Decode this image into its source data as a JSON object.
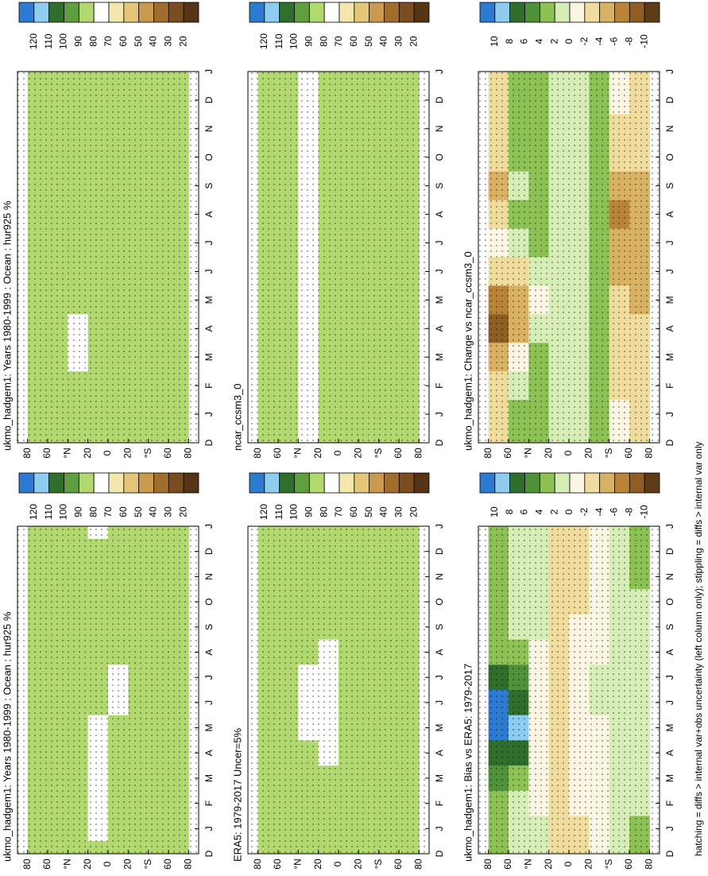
{
  "chart_data": [
    {
      "type": "heatmap",
      "title": "ukmo_hadgem1: Years 1980-1999 : Ocean : hur925 %",
      "categories": [
        "D",
        "J",
        "F",
        "M",
        "A",
        "M",
        "J",
        "J",
        "A",
        "S",
        "O",
        "N",
        "D",
        "J"
      ],
      "y": [
        70,
        50,
        30,
        10,
        -10,
        -30,
        -50,
        -70
      ],
      "ylim": [
        -90,
        90
      ],
      "yticks": [
        80,
        60,
        {
          "value": 40,
          "label": "°N"
        },
        20,
        0,
        {
          "value": -20,
          "label": "20"
        },
        {
          "value": -40,
          "label": "°S"
        },
        {
          "value": -60,
          "label": "60"
        },
        {
          "value": -80,
          "label": "80"
        }
      ],
      "values": [
        [
          84,
          84,
          84,
          83,
          82,
          82,
          83,
          84,
          85,
          85,
          85,
          84,
          84,
          84
        ],
        [
          85,
          85,
          85,
          84,
          83,
          83,
          84,
          85,
          85,
          86,
          86,
          85,
          85,
          85
        ],
        [
          82,
          82,
          82,
          81,
          80,
          80,
          80,
          80,
          82,
          83,
          83,
          82,
          82,
          82
        ],
        [
          80,
          78,
          76,
          75,
          76,
          79,
          82,
          83,
          83,
          82,
          81,
          80,
          80,
          78
        ],
        [
          82,
          82,
          82,
          82,
          81,
          80,
          79,
          79,
          80,
          81,
          82,
          82,
          82,
          82
        ],
        [
          83,
          83,
          82,
          82,
          82,
          81,
          81,
          81,
          81,
          82,
          83,
          83,
          83,
          83
        ],
        [
          86,
          86,
          85,
          85,
          85,
          85,
          85,
          85,
          85,
          85,
          85,
          86,
          86,
          86
        ],
        [
          87,
          87,
          86,
          86,
          86,
          86,
          86,
          86,
          86,
          86,
          86,
          87,
          87,
          87
        ]
      ],
      "levels": [
        120,
        110,
        100,
        90,
        80,
        70,
        60,
        50,
        40,
        30,
        20
      ],
      "colors": [
        "#2d7bd0",
        "#8fcdf0",
        "#2f6f2b",
        "#5f9f3d",
        "#b2d970",
        "#ffffff",
        "#f4e7ad",
        "#e3c679",
        "#c79a4d",
        "#a06d2e",
        "#7a4e20",
        "#553516"
      ]
    },
    {
      "type": "heatmap",
      "title": "ukmo_hadgem1: Years 1980-1999 : Ocean : hur925 %",
      "categories": [
        "D",
        "J",
        "F",
        "M",
        "A",
        "M",
        "J",
        "J",
        "A",
        "S",
        "O",
        "N",
        "D",
        "J"
      ],
      "y": [
        70,
        50,
        30,
        10,
        -10,
        -30,
        -50,
        -70
      ],
      "ylim": [
        -90,
        90
      ],
      "yticks": [
        80,
        60,
        {
          "value": 40,
          "label": "°N"
        },
        20,
        0,
        {
          "value": -20,
          "label": "20"
        },
        {
          "value": -40,
          "label": "°S"
        },
        {
          "value": -60,
          "label": "60"
        },
        {
          "value": -80,
          "label": "80"
        }
      ],
      "values": [
        [
          84,
          84,
          84,
          84,
          83,
          83,
          83,
          84,
          85,
          85,
          85,
          84,
          84,
          84
        ],
        [
          85,
          85,
          85,
          85,
          84,
          84,
          84,
          85,
          85,
          86,
          86,
          85,
          85,
          85
        ],
        [
          82,
          82,
          81,
          79,
          78,
          80,
          81,
          81,
          82,
          83,
          83,
          82,
          82,
          82
        ],
        [
          81,
          81,
          80,
          80,
          81,
          82,
          83,
          83,
          83,
          82,
          82,
          81,
          81,
          81
        ],
        [
          82,
          82,
          82,
          82,
          82,
          82,
          81,
          81,
          81,
          82,
          82,
          82,
          82,
          82
        ],
        [
          83,
          83,
          83,
          82,
          82,
          82,
          82,
          82,
          82,
          82,
          83,
          83,
          83,
          83
        ],
        [
          86,
          86,
          85,
          85,
          85,
          85,
          85,
          85,
          85,
          85,
          85,
          86,
          86,
          86
        ],
        [
          87,
          87,
          86,
          86,
          86,
          86,
          86,
          86,
          86,
          86,
          86,
          87,
          87,
          87
        ]
      ],
      "levels": [
        120,
        110,
        100,
        90,
        80,
        70,
        60,
        50,
        40,
        30,
        20
      ],
      "colors": [
        "#2d7bd0",
        "#8fcdf0",
        "#2f6f2b",
        "#5f9f3d",
        "#b2d970",
        "#ffffff",
        "#f4e7ad",
        "#e3c679",
        "#c79a4d",
        "#a06d2e",
        "#7a4e20",
        "#553516"
      ]
    },
    {
      "type": "heatmap",
      "title": "ERA5: 1979-2017 Uncer=5%",
      "categories": [
        "D",
        "J",
        "F",
        "M",
        "A",
        "M",
        "J",
        "J",
        "A",
        "S",
        "O",
        "N",
        "D",
        "J"
      ],
      "y": [
        70,
        50,
        30,
        10,
        -10,
        -30,
        -50,
        -70
      ],
      "ylim": [
        -90,
        90
      ],
      "yticks": [
        80,
        60,
        {
          "value": 40,
          "label": "°N"
        },
        20,
        0,
        {
          "value": -20,
          "label": "20"
        },
        {
          "value": -40,
          "label": "°S"
        },
        {
          "value": -60,
          "label": "60"
        },
        {
          "value": -80,
          "label": "80"
        }
      ],
      "values": [
        [
          84,
          84,
          84,
          84,
          82,
          80,
          81,
          81,
          82,
          84,
          85,
          85,
          84,
          84
        ],
        [
          85,
          85,
          85,
          85,
          83,
          81,
          81,
          82,
          83,
          85,
          86,
          86,
          85,
          85
        ],
        [
          82,
          82,
          82,
          82,
          80,
          77,
          75,
          76,
          80,
          82,
          83,
          83,
          82,
          82
        ],
        [
          80,
          80,
          80,
          80,
          79,
          76,
          74,
          74,
          77,
          80,
          81,
          81,
          80,
          80
        ],
        [
          81,
          81,
          81,
          81,
          81,
          81,
          81,
          81,
          81,
          81,
          81,
          81,
          81,
          81
        ],
        [
          82,
          82,
          82,
          82,
          82,
          82,
          82,
          82,
          82,
          82,
          82,
          82,
          82,
          82
        ],
        [
          86,
          86,
          86,
          86,
          86,
          86,
          86,
          86,
          86,
          86,
          86,
          86,
          86,
          86
        ],
        [
          87,
          87,
          87,
          87,
          87,
          87,
          87,
          87,
          87,
          87,
          87,
          87,
          87,
          87
        ]
      ],
      "levels": [
        120,
        110,
        100,
        90,
        80,
        70,
        60,
        50,
        40,
        30,
        20
      ],
      "colors": [
        "#2d7bd0",
        "#8fcdf0",
        "#2f6f2b",
        "#5f9f3d",
        "#b2d970",
        "#ffffff",
        "#f4e7ad",
        "#e3c679",
        "#c79a4d",
        "#a06d2e",
        "#7a4e20",
        "#553516"
      ]
    },
    {
      "type": "heatmap",
      "title": "ncar_ccsm3_0",
      "categories": [
        "D",
        "J",
        "F",
        "M",
        "A",
        "M",
        "J",
        "J",
        "A",
        "S",
        "O",
        "N",
        "D",
        "J"
      ],
      "y": [
        70,
        50,
        30,
        10,
        -10,
        -30,
        -50,
        -70
      ],
      "ylim": [
        -90,
        90
      ],
      "yticks": [
        80,
        60,
        {
          "value": 40,
          "label": "°N"
        },
        20,
        0,
        {
          "value": -20,
          "label": "20"
        },
        {
          "value": -40,
          "label": "°S"
        },
        {
          "value": -60,
          "label": "60"
        },
        {
          "value": -80,
          "label": "80"
        }
      ],
      "values": [
        [
          85,
          85,
          85,
          85,
          85,
          85,
          84,
          84,
          84,
          85,
          85,
          85,
          85,
          85
        ],
        [
          86,
          86,
          86,
          86,
          85,
          85,
          85,
          85,
          85,
          86,
          86,
          86,
          86,
          86
        ],
        [
          77,
          77,
          77,
          76,
          76,
          76,
          75,
          75,
          76,
          76,
          77,
          77,
          77,
          77
        ],
        [
          82,
          82,
          82,
          82,
          82,
          82,
          82,
          82,
          82,
          82,
          82,
          82,
          82,
          82
        ],
        [
          83,
          83,
          83,
          83,
          83,
          83,
          83,
          83,
          83,
          83,
          83,
          83,
          83,
          83
        ],
        [
          82,
          82,
          82,
          82,
          82,
          82,
          81,
          81,
          81,
          82,
          82,
          82,
          82,
          82
        ],
        [
          86,
          86,
          86,
          86,
          86,
          86,
          86,
          86,
          86,
          86,
          86,
          86,
          86,
          86
        ],
        [
          87,
          87,
          87,
          87,
          87,
          87,
          87,
          87,
          87,
          87,
          87,
          87,
          87,
          87
        ]
      ],
      "levels": [
        120,
        110,
        100,
        90,
        80,
        70,
        60,
        50,
        40,
        30,
        20
      ],
      "colors": [
        "#2d7bd0",
        "#8fcdf0",
        "#2f6f2b",
        "#5f9f3d",
        "#b2d970",
        "#ffffff",
        "#f4e7ad",
        "#e3c679",
        "#c79a4d",
        "#a06d2e",
        "#7a4e20",
        "#553516"
      ]
    },
    {
      "type": "heatmap",
      "title": "ukmo_hadgem1: Bias vs ERA5: 1979-2017",
      "categories": [
        "D",
        "J",
        "F",
        "M",
        "A",
        "M",
        "J",
        "J",
        "A",
        "S",
        "O",
        "N",
        "D",
        "J"
      ],
      "y": [
        70,
        50,
        30,
        10,
        -10,
        -30,
        -50,
        -70
      ],
      "ylim": [
        -90,
        90
      ],
      "yticks": [
        80,
        60,
        {
          "value": 40,
          "label": "°N"
        },
        20,
        0,
        {
          "value": -20,
          "label": "20"
        },
        {
          "value": -40,
          "label": "°S"
        },
        {
          "value": -60,
          "label": "60"
        },
        {
          "value": -80,
          "label": "80"
        }
      ],
      "values": [
        [
          2,
          2,
          2,
          4,
          6,
          12,
          11,
          6,
          3,
          2,
          2,
          2,
          2,
          2
        ],
        [
          1,
          1,
          1,
          2,
          6,
          8,
          7,
          4,
          2,
          1,
          1,
          1,
          1,
          1
        ],
        [
          0,
          0,
          -1,
          -1,
          -2,
          -2,
          -2,
          -2,
          -1,
          0,
          0,
          0,
          0,
          0
        ],
        [
          -3,
          -3,
          -3,
          -4,
          -4,
          -3,
          -3,
          -3,
          -3,
          -3,
          -3,
          -3,
          -3,
          -3
        ],
        [
          -3,
          -3,
          -2,
          -2,
          -2,
          -2,
          -2,
          -2,
          -2,
          -2,
          -3,
          -3,
          -3,
          -3
        ],
        [
          -1,
          -1,
          -1,
          -1,
          -1,
          -1,
          0,
          0,
          -1,
          -1,
          -1,
          -1,
          -1,
          -1
        ],
        [
          1,
          1,
          1,
          1,
          1,
          1,
          1,
          1,
          1,
          1,
          1,
          1,
          1,
          1
        ],
        [
          2,
          2,
          1,
          1,
          1,
          1,
          1,
          1,
          1,
          1,
          1,
          2,
          2,
          2
        ]
      ],
      "levels": [
        10,
        8,
        6,
        4,
        2,
        0,
        -2,
        -4,
        -6,
        -8,
        -10
      ],
      "colors": [
        "#2d7bd0",
        "#8fcdf0",
        "#2f6f2b",
        "#4f923a",
        "#8cc255",
        "#d6edb6",
        "#fbf6e4",
        "#f0dc9c",
        "#d9b163",
        "#b98437",
        "#8f5e24",
        "#5e3c17"
      ]
    },
    {
      "type": "heatmap",
      "title": "ukmo_hadgem1: Change vs ncar_ccsm3_0",
      "categories": [
        "D",
        "J",
        "F",
        "M",
        "A",
        "M",
        "J",
        "J",
        "A",
        "S",
        "O",
        "N",
        "D",
        "J"
      ],
      "y": [
        70,
        50,
        30,
        10,
        -10,
        -30,
        -50,
        -70
      ],
      "ylim": [
        -90,
        90
      ],
      "yticks": [
        80,
        60,
        {
          "value": 40,
          "label": "°N"
        },
        20,
        0,
        {
          "value": -20,
          "label": "20"
        },
        {
          "value": -40,
          "label": "°S"
        },
        {
          "value": -60,
          "label": "60"
        },
        {
          "value": -80,
          "label": "80"
        }
      ],
      "values": [
        [
          -3,
          -3,
          -4,
          -6,
          -9,
          -7,
          -3,
          -2,
          -3,
          -5,
          -4,
          -3,
          -3,
          -3
        ],
        [
          2,
          2,
          1,
          -2,
          -5,
          -6,
          -3,
          1,
          2,
          1,
          2,
          2,
          2,
          2
        ],
        [
          2,
          2,
          2,
          2,
          1,
          -1,
          1,
          2,
          2,
          2,
          2,
          2,
          2,
          2
        ],
        [
          1,
          1,
          1,
          1,
          0,
          0,
          1,
          1,
          1,
          1,
          1,
          1,
          1,
          1
        ],
        [
          1,
          1,
          1,
          1,
          1,
          0,
          0,
          1,
          1,
          1,
          1,
          1,
          1,
          1
        ],
        [
          2,
          2,
          2,
          2,
          2,
          2,
          3,
          3,
          3,
          2,
          2,
          2,
          2,
          2
        ],
        [
          -2,
          -2,
          -3,
          -3,
          -4,
          -4,
          -5,
          -6,
          -7,
          -6,
          -4,
          -3,
          -2,
          -2
        ],
        [
          -3,
          -3,
          -3,
          -4,
          -4,
          -5,
          -6,
          -6,
          -6,
          -5,
          -4,
          -3,
          -3,
          -3
        ]
      ],
      "levels": [
        10,
        8,
        6,
        4,
        2,
        0,
        -2,
        -4,
        -6,
        -8,
        -10
      ],
      "colors": [
        "#2d7bd0",
        "#8fcdf0",
        "#2f6f2b",
        "#4f923a",
        "#8cc255",
        "#d6edb6",
        "#fbf6e4",
        "#f0dc9c",
        "#d9b163",
        "#b98437",
        "#8f5e24",
        "#5e3c17"
      ]
    }
  ],
  "footer_note": "hatching = diffs > internal var+obs uncertainty (left column only); stippling = diffs > internal var only"
}
